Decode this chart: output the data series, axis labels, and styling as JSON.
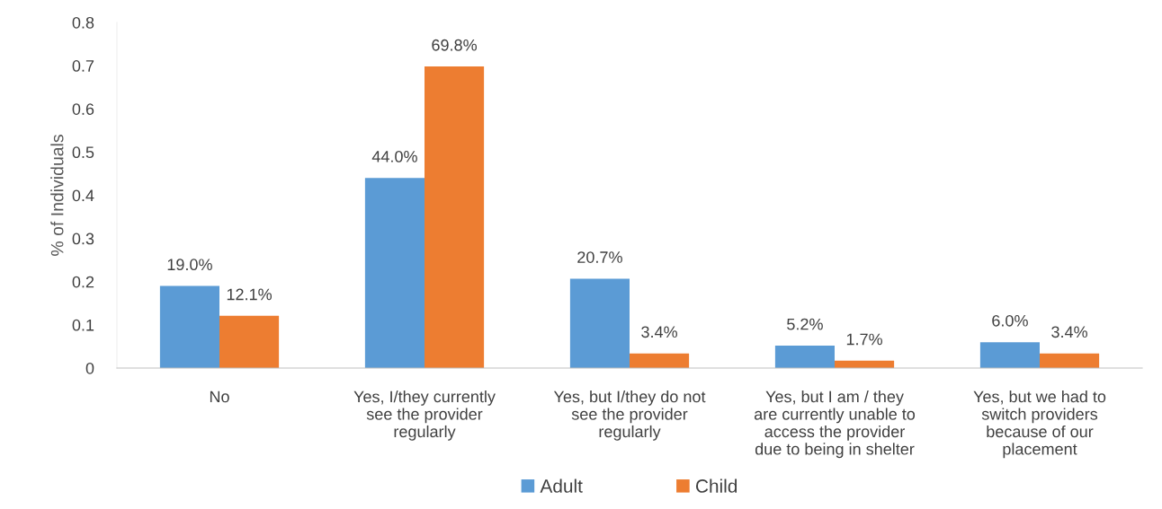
{
  "chart_data": {
    "type": "bar",
    "ylabel": "% of Individuals",
    "categories": [
      "No",
      "Yes, I/they currently\nsee the provider\nregularly",
      "Yes, but I/they do not\nsee the provider\nregularly",
      "Yes, but I am / they\nare currently unable to\naccess the provider\ndue to being in shelter",
      "Yes, but we had to\nswitch providers\nbecause of our\nplacement"
    ],
    "series": [
      {
        "name": "Adult",
        "color": "#5b9bd5",
        "values": [
          0.19,
          0.44,
          0.207,
          0.052,
          0.06
        ],
        "value_labels": [
          "19.0%",
          "44.0%",
          "20.7%",
          "5.2%",
          "6.0%"
        ]
      },
      {
        "name": "Child",
        "color": "#ed7d31",
        "values": [
          0.121,
          0.698,
          0.034,
          0.017,
          0.034
        ],
        "value_labels": [
          "12.1%",
          "69.8%",
          "3.4%",
          "1.7%",
          "3.4%"
        ]
      }
    ],
    "ylim": [
      0,
      0.8
    ],
    "yticks": [
      {
        "value": 0,
        "label": "0"
      },
      0.1,
      0.2,
      0.3,
      0.4,
      0.5,
      0.6,
      0.7,
      0.8
    ],
    "grid": false,
    "legend": "bottom"
  }
}
